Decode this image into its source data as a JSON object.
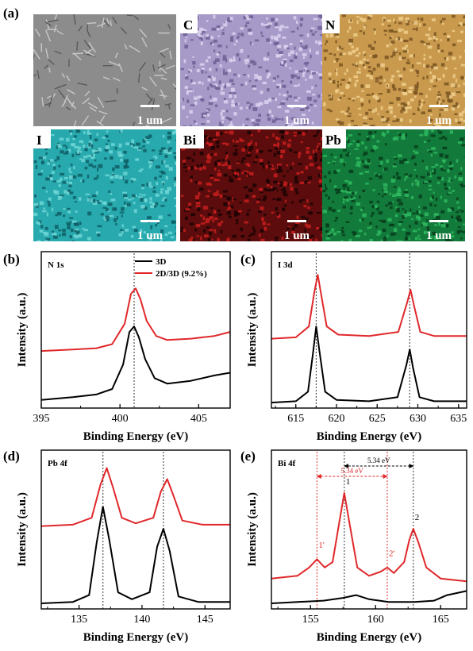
{
  "figure": {
    "label_a": "(a)",
    "map_panels": [
      {
        "label": "",
        "scale_text": "1 um",
        "base": "#8c8c8c",
        "dark": "#5a5a5a",
        "light": "#c8c8c8"
      },
      {
        "label": "C",
        "scale_text": "1 um",
        "base": "#a79ac9",
        "dark": "#6e5f94",
        "light": "#dcd3f0"
      },
      {
        "label": "N",
        "scale_text": "1 um",
        "base": "#c99a4e",
        "dark": "#7a5522",
        "light": "#f0cf8c"
      },
      {
        "label": "I",
        "scale_text": "1 um",
        "base": "#27a9ad",
        "dark": "#0f5f66",
        "light": "#6fd6d6"
      },
      {
        "label": "Bi",
        "scale_text": "1 um",
        "base": "#5c0c0c",
        "dark": "#1a0404",
        "light": "#c81e1e"
      },
      {
        "label": "Pb",
        "scale_text": "1 um",
        "base": "#127a3a",
        "dark": "#083d1c",
        "light": "#2fb860"
      }
    ],
    "colors": {
      "3D": "#000000",
      "2D/3D": "#e0282b",
      "guide_black": "#333333",
      "guide_red": "#e0282b"
    }
  },
  "chart_data": [
    {
      "type": "line",
      "panel_label": "(b)",
      "element_label": "N 1s",
      "xlabel": "Binding Energy (eV)",
      "ylabel": "Intensity (a.u.)",
      "xlim": [
        395,
        407
      ],
      "ylim": [
        0,
        1.15
      ],
      "xticks": [
        "395",
        "400",
        "405"
      ],
      "xtick_values": [
        395,
        400,
        405
      ],
      "legend": [
        "3D",
        "2D/3D (9.2%)"
      ],
      "guides": [
        {
          "x": 400.9,
          "color": "black"
        }
      ],
      "series": [
        {
          "name": "3D",
          "x": [
            395,
            397,
            398.5,
            399.5,
            400.2,
            400.6,
            400.9,
            401.2,
            401.6,
            402.2,
            403,
            404.5,
            406,
            407
          ],
          "y": [
            0.06,
            0.08,
            0.1,
            0.14,
            0.32,
            0.56,
            0.6,
            0.52,
            0.36,
            0.22,
            0.18,
            0.2,
            0.24,
            0.26
          ]
        },
        {
          "name": "2D/3D (9.2%)",
          "x": [
            395,
            397,
            398.5,
            399.5,
            400.3,
            400.7,
            401.0,
            401.3,
            401.7,
            402.3,
            403,
            404.5,
            406,
            407
          ],
          "y": [
            0.42,
            0.43,
            0.44,
            0.47,
            0.62,
            0.84,
            0.88,
            0.8,
            0.64,
            0.53,
            0.5,
            0.51,
            0.53,
            0.56
          ]
        }
      ]
    },
    {
      "type": "line",
      "panel_label": "(c)",
      "element_label": "I 3d",
      "xlabel": "Binding Energy (eV)",
      "ylabel": "Intensity (a.u.)",
      "xlim": [
        612,
        636
      ],
      "ylim": [
        0,
        1.15
      ],
      "xticks": [
        "615",
        "620",
        "625",
        "630",
        "635"
      ],
      "xtick_values": [
        615,
        620,
        625,
        630,
        635
      ],
      "guides": [
        {
          "x": 617.5,
          "color": "black"
        },
        {
          "x": 629.0,
          "color": "black"
        }
      ],
      "series": [
        {
          "name": "3D",
          "x": [
            612,
            615,
            616.5,
            617.1,
            617.5,
            617.9,
            618.6,
            620,
            624,
            627.5,
            628.6,
            629.0,
            629.4,
            630.2,
            632,
            636
          ],
          "y": [
            0.04,
            0.05,
            0.12,
            0.4,
            0.6,
            0.42,
            0.12,
            0.06,
            0.05,
            0.08,
            0.32,
            0.43,
            0.3,
            0.08,
            0.05,
            0.05
          ]
        },
        {
          "name": "2D/3D (9.2%)",
          "x": [
            612,
            615,
            616.6,
            617.3,
            617.7,
            618.1,
            618.8,
            620.2,
            624,
            627.6,
            628.7,
            629.1,
            629.5,
            630.3,
            632,
            636
          ],
          "y": [
            0.51,
            0.52,
            0.6,
            0.86,
            0.98,
            0.84,
            0.6,
            0.54,
            0.53,
            0.56,
            0.78,
            0.87,
            0.76,
            0.56,
            0.53,
            0.53
          ]
        }
      ]
    },
    {
      "type": "line",
      "panel_label": "(d)",
      "element_label": "Pb 4f",
      "xlabel": "Binding Energy (eV)",
      "ylabel": "Intensity (a.u.)",
      "xlim": [
        132,
        147
      ],
      "ylim": [
        0,
        1.15
      ],
      "xticks": [
        "135",
        "140",
        "145"
      ],
      "xtick_values": [
        135,
        140,
        145
      ],
      "guides": [
        {
          "x": 136.9,
          "color": "black"
        },
        {
          "x": 141.7,
          "color": "black"
        }
      ],
      "series": [
        {
          "name": "3D",
          "x": [
            132,
            134.5,
            135.8,
            136.4,
            136.9,
            137.4,
            138.1,
            139.2,
            140.6,
            141.2,
            141.7,
            142.2,
            142.9,
            144.5,
            147
          ],
          "y": [
            0.04,
            0.05,
            0.1,
            0.48,
            0.74,
            0.5,
            0.12,
            0.07,
            0.12,
            0.45,
            0.58,
            0.42,
            0.09,
            0.05,
            0.05
          ]
        },
        {
          "name": "2D/3D (9.2%)",
          "x": [
            132,
            134.5,
            136.0,
            136.7,
            137.2,
            137.7,
            138.4,
            139.5,
            140.9,
            141.5,
            142.0,
            142.5,
            143.2,
            144.8,
            147
          ],
          "y": [
            0.6,
            0.61,
            0.66,
            0.9,
            1.02,
            0.88,
            0.66,
            0.62,
            0.66,
            0.85,
            0.94,
            0.82,
            0.64,
            0.61,
            0.61
          ]
        }
      ]
    },
    {
      "type": "line",
      "panel_label": "(e)",
      "element_label": "Bi 4f",
      "xlabel": "Binding Energy (eV)",
      "ylabel": "Intensity (a.u.)",
      "xlim": [
        152,
        167
      ],
      "ylim": [
        0,
        1.15
      ],
      "xticks": [
        "155",
        "160",
        "165"
      ],
      "xtick_values": [
        155,
        160,
        165
      ],
      "guides": [
        {
          "x": 155.5,
          "color": "red"
        },
        {
          "x": 157.6,
          "color": "black"
        },
        {
          "x": 160.9,
          "color": "red"
        },
        {
          "x": 162.9,
          "color": "black"
        }
      ],
      "annotations": {
        "black_arrow_text": "5.34 eV",
        "black_arrow_from": 157.6,
        "black_arrow_to": 162.9,
        "red_arrow_text": "5.34 eV",
        "red_arrow_from": 155.5,
        "red_arrow_to": 160.9,
        "peaks": [
          {
            "text": "1",
            "x": 157.6,
            "y": 0.88,
            "color": "black"
          },
          {
            "text": "2",
            "x": 162.9,
            "y": 0.62,
            "color": "black"
          },
          {
            "text": "1'",
            "x": 155.5,
            "y": 0.42,
            "color": "red"
          },
          {
            "text": "2'",
            "x": 160.9,
            "y": 0.36,
            "color": "red"
          }
        ]
      },
      "series": [
        {
          "name": "3D",
          "x": [
            152,
            154,
            156,
            157.5,
            158.5,
            159.5,
            161,
            163,
            164.5,
            165.5,
            167
          ],
          "y": [
            0.04,
            0.05,
            0.06,
            0.08,
            0.1,
            0.07,
            0.05,
            0.05,
            0.06,
            0.1,
            0.13
          ]
        },
        {
          "name": "2D/3D (9.2%)",
          "x": [
            152,
            154,
            154.9,
            155.5,
            156.1,
            156.7,
            157.2,
            157.6,
            158.0,
            158.6,
            159.5,
            160.4,
            160.9,
            161.4,
            162.2,
            162.6,
            162.9,
            163.3,
            163.9,
            165,
            167
          ],
          "y": [
            0.22,
            0.24,
            0.3,
            0.36,
            0.3,
            0.34,
            0.62,
            0.84,
            0.62,
            0.3,
            0.24,
            0.27,
            0.3,
            0.26,
            0.34,
            0.5,
            0.58,
            0.48,
            0.3,
            0.22,
            0.2
          ]
        }
      ]
    }
  ]
}
